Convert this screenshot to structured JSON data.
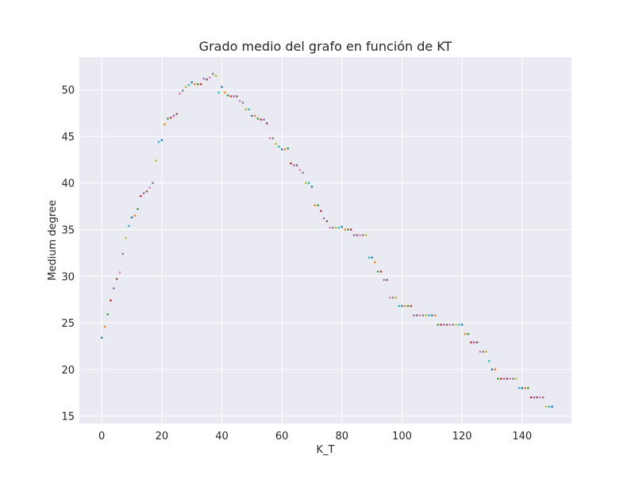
{
  "chart_data": {
    "type": "scatter",
    "title": "Grado medio del grafo en función de KT",
    "xlabel": "K_T",
    "ylabel": "Medium degree",
    "xlim": [
      -7.45,
      156.45
    ],
    "ylim": [
      14.2,
      53.5
    ],
    "x_ticks": [
      0,
      20,
      40,
      60,
      80,
      100,
      120,
      140
    ],
    "y_ticks": [
      15,
      20,
      25,
      30,
      35,
      40,
      45,
      50
    ],
    "grid": true,
    "background": "#eaeaf2",
    "colors": [
      "#1f77b4",
      "#ff7f0e",
      "#2ca02c",
      "#d62728",
      "#9467bd",
      "#8c564b",
      "#e377c2",
      "#7f7f7f",
      "#bcbd22",
      "#17becf"
    ],
    "points": [
      [
        0,
        23.4
      ],
      [
        1,
        24.6
      ],
      [
        2,
        25.9
      ],
      [
        3,
        27.4
      ],
      [
        4,
        28.7
      ],
      [
        5,
        29.7
      ],
      [
        6,
        30.4
      ],
      [
        7,
        32.4
      ],
      [
        8,
        34.1
      ],
      [
        9,
        35.4
      ],
      [
        10,
        36.3
      ],
      [
        11,
        36.5
      ],
      [
        12,
        37.2
      ],
      [
        13,
        38.6
      ],
      [
        14,
        38.9
      ],
      [
        15,
        39.1
      ],
      [
        16,
        39.5
      ],
      [
        17,
        40.0
      ],
      [
        18,
        42.4
      ],
      [
        19,
        44.4
      ],
      [
        20,
        44.6
      ],
      [
        21,
        46.3
      ],
      [
        22,
        46.9
      ],
      [
        23,
        47.0
      ],
      [
        24,
        47.2
      ],
      [
        25,
        47.4
      ],
      [
        26,
        49.6
      ],
      [
        27,
        49.9
      ],
      [
        28,
        50.3
      ],
      [
        29,
        50.5
      ],
      [
        30,
        50.8
      ],
      [
        31,
        50.6
      ],
      [
        32,
        50.6
      ],
      [
        33,
        50.6
      ],
      [
        34,
        51.2
      ],
      [
        35,
        51.1
      ],
      [
        36,
        51.3
      ],
      [
        37,
        51.7
      ],
      [
        38,
        51.5
      ],
      [
        39,
        49.7
      ],
      [
        40,
        50.3
      ],
      [
        41,
        49.7
      ],
      [
        42,
        49.4
      ],
      [
        43,
        49.3
      ],
      [
        44,
        49.3
      ],
      [
        45,
        49.3
      ],
      [
        46,
        48.8
      ],
      [
        47,
        48.6
      ],
      [
        48,
        47.9
      ],
      [
        49,
        47.9
      ],
      [
        50,
        47.2
      ],
      [
        51,
        47.2
      ],
      [
        52,
        46.9
      ],
      [
        53,
        46.8
      ],
      [
        54,
        46.8
      ],
      [
        55,
        46.4
      ],
      [
        56,
        44.8
      ],
      [
        57,
        44.8
      ],
      [
        58,
        44.2
      ],
      [
        59,
        43.9
      ],
      [
        60,
        43.6
      ],
      [
        61,
        43.6
      ],
      [
        62,
        43.7
      ],
      [
        63,
        42.1
      ],
      [
        64,
        41.9
      ],
      [
        65,
        41.9
      ],
      [
        66,
        41.4
      ],
      [
        67,
        41.1
      ],
      [
        68,
        40.0
      ],
      [
        69,
        40.0
      ],
      [
        70,
        39.6
      ],
      [
        71,
        37.6
      ],
      [
        72,
        37.6
      ],
      [
        73,
        37.0
      ],
      [
        74,
        36.2
      ],
      [
        75,
        35.9
      ],
      [
        76,
        35.2
      ],
      [
        77,
        35.2
      ],
      [
        78,
        35.2
      ],
      [
        79,
        35.2
      ],
      [
        80,
        35.3
      ],
      [
        81,
        35.0
      ],
      [
        82,
        35.0
      ],
      [
        83,
        35.0
      ],
      [
        84,
        34.4
      ],
      [
        85,
        34.4
      ],
      [
        86,
        34.4
      ],
      [
        87,
        34.4
      ],
      [
        88,
        34.4
      ],
      [
        89,
        32.0
      ],
      [
        90,
        32.0
      ],
      [
        91,
        31.5
      ],
      [
        92,
        30.5
      ],
      [
        93,
        30.5
      ],
      [
        94,
        29.6
      ],
      [
        95,
        29.6
      ],
      [
        96,
        27.7
      ],
      [
        97,
        27.7
      ],
      [
        98,
        27.7
      ],
      [
        99,
        26.8
      ],
      [
        100,
        26.8
      ],
      [
        101,
        26.8
      ],
      [
        102,
        26.8
      ],
      [
        103,
        26.8
      ],
      [
        104,
        25.8
      ],
      [
        105,
        25.8
      ],
      [
        106,
        25.8
      ],
      [
        107,
        25.8
      ],
      [
        108,
        25.8
      ],
      [
        109,
        25.8
      ],
      [
        110,
        25.8
      ],
      [
        111,
        25.8
      ],
      [
        112,
        24.8
      ],
      [
        113,
        24.8
      ],
      [
        114,
        24.8
      ],
      [
        115,
        24.8
      ],
      [
        116,
        24.8
      ],
      [
        117,
        24.8
      ],
      [
        118,
        24.8
      ],
      [
        119,
        24.8
      ],
      [
        120,
        24.8
      ],
      [
        121,
        23.8
      ],
      [
        122,
        23.8
      ],
      [
        123,
        22.9
      ],
      [
        124,
        22.9
      ],
      [
        125,
        22.9
      ],
      [
        126,
        21.9
      ],
      [
        127,
        21.9
      ],
      [
        128,
        21.9
      ],
      [
        129,
        20.9
      ],
      [
        130,
        20.0
      ],
      [
        131,
        20.0
      ],
      [
        132,
        19.0
      ],
      [
        133,
        19.0
      ],
      [
        134,
        19.0
      ],
      [
        135,
        19.0
      ],
      [
        136,
        19.0
      ],
      [
        137,
        19.0
      ],
      [
        138,
        19.0
      ],
      [
        139,
        18.0
      ],
      [
        140,
        18.0
      ],
      [
        141,
        18.0
      ],
      [
        142,
        18.0
      ],
      [
        143,
        17.0
      ],
      [
        144,
        17.0
      ],
      [
        145,
        17.0
      ],
      [
        146,
        17.0
      ],
      [
        147,
        17.0
      ],
      [
        148,
        16.0
      ],
      [
        149,
        16.0
      ],
      [
        150,
        16.0
      ]
    ]
  }
}
